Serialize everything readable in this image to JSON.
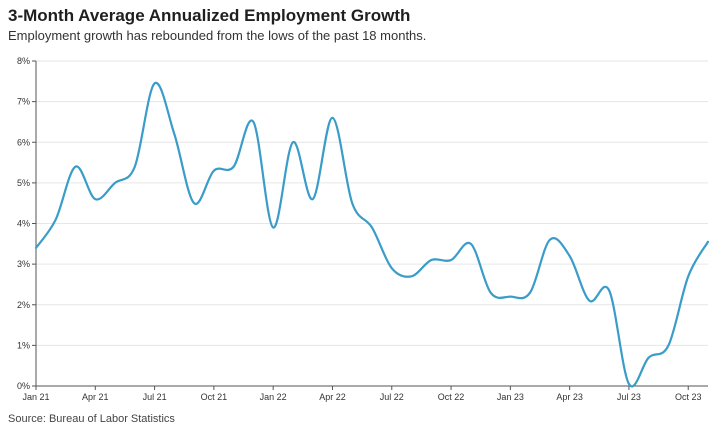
{
  "chart_data": {
    "type": "line",
    "title": "3-Month Average Annualized Employment Growth",
    "subtitle": "Employment growth has rebounded from the lows of the past 18 months.",
    "source": "Source: Bureau of Labor Statistics",
    "xlabel": "",
    "ylabel": "",
    "ylim": [
      0,
      8
    ],
    "yticks": [
      0,
      1,
      2,
      3,
      4,
      5,
      6,
      7,
      8
    ],
    "ytick_labels": [
      "0%",
      "1%",
      "2%",
      "3%",
      "4%",
      "5%",
      "6%",
      "7%",
      "8%"
    ],
    "xlim": [
      "2021-01",
      "2023-11"
    ],
    "xticks": [
      "2021-01",
      "2021-04",
      "2021-07",
      "2021-10",
      "2022-01",
      "2022-04",
      "2022-07",
      "2022-10",
      "2023-01",
      "2023-04",
      "2023-07",
      "2023-10"
    ],
    "xtick_labels": [
      "Jan 21",
      "Apr 21",
      "Jul 21",
      "Oct 21",
      "Jan 22",
      "Apr 22",
      "Jul 22",
      "Oct 22",
      "Jan 23",
      "Apr 23",
      "Jul 23",
      "Oct 23"
    ],
    "grid": "horizontal",
    "line_color": "#3a9cc8",
    "series": [
      {
        "name": "",
        "x": [
          "2021-01",
          "2021-02",
          "2021-03",
          "2021-04",
          "2021-05",
          "2021-06",
          "2021-07",
          "2021-08",
          "2021-09",
          "2021-10",
          "2021-11",
          "2021-12",
          "2022-01",
          "2022-02",
          "2022-03",
          "2022-04",
          "2022-05",
          "2022-06",
          "2022-07",
          "2022-08",
          "2022-09",
          "2022-10",
          "2022-11",
          "2022-12",
          "2023-01",
          "2023-02",
          "2023-03",
          "2023-04",
          "2023-05",
          "2023-06",
          "2023-07",
          "2023-08",
          "2023-09",
          "2023-10",
          "2023-11"
        ],
        "values": [
          3.4,
          4.1,
          5.4,
          4.6,
          5.0,
          5.4,
          7.45,
          6.2,
          4.5,
          5.3,
          5.4,
          6.5,
          3.9,
          6.0,
          4.6,
          6.6,
          4.5,
          3.9,
          2.9,
          2.7,
          3.1,
          3.1,
          3.5,
          2.3,
          2.2,
          2.3,
          3.6,
          3.2,
          2.1,
          2.35,
          0.05,
          0.7,
          1.0,
          2.7,
          3.55
        ]
      }
    ]
  }
}
